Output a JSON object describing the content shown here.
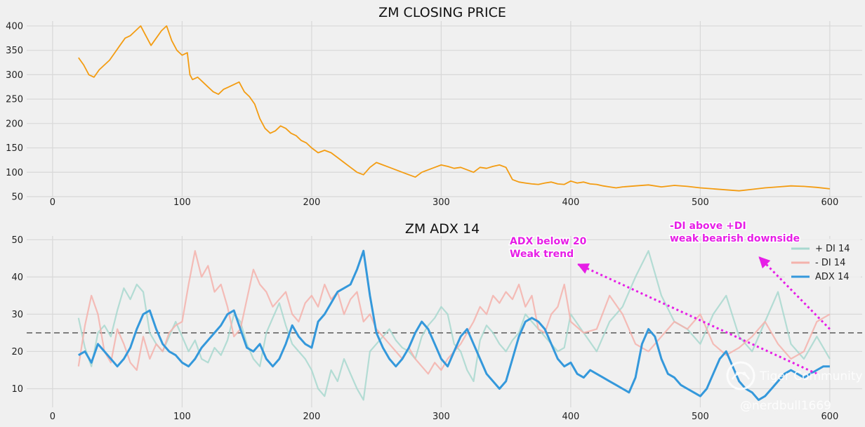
{
  "chart_data": [
    {
      "type": "line",
      "title": "ZM CLOSING PRICE",
      "xlim": [
        -20,
        625
      ],
      "ylim": [
        50,
        410
      ],
      "xticks": [
        0,
        100,
        200,
        300,
        400,
        500,
        600
      ],
      "yticks": [
        50,
        100,
        150,
        200,
        250,
        300,
        350,
        400
      ],
      "grid": true,
      "series": [
        {
          "color": "#f39c12",
          "x": [
            20,
            24,
            28,
            32,
            36,
            40,
            44,
            48,
            52,
            56,
            60,
            64,
            68,
            72,
            76,
            80,
            84,
            88,
            92,
            96,
            100,
            104,
            106,
            108,
            112,
            116,
            120,
            124,
            128,
            132,
            136,
            140,
            144,
            148,
            152,
            156,
            160,
            164,
            168,
            172,
            176,
            180,
            184,
            188,
            192,
            196,
            200,
            205,
            210,
            215,
            220,
            225,
            230,
            235,
            240,
            245,
            250,
            255,
            260,
            265,
            270,
            275,
            280,
            285,
            290,
            295,
            300,
            305,
            310,
            315,
            320,
            325,
            330,
            335,
            340,
            345,
            350,
            355,
            360,
            365,
            370,
            375,
            380,
            385,
            390,
            395,
            400,
            405,
            410,
            415,
            420,
            425,
            430,
            435,
            440,
            450,
            460,
            470,
            480,
            490,
            500,
            510,
            520,
            530,
            540,
            550,
            560,
            570,
            580,
            590,
            600
          ],
          "y": [
            335,
            320,
            300,
            295,
            310,
            320,
            330,
            345,
            360,
            375,
            380,
            390,
            400,
            380,
            360,
            375,
            390,
            400,
            370,
            350,
            340,
            345,
            300,
            290,
            295,
            285,
            275,
            265,
            260,
            270,
            275,
            280,
            285,
            265,
            255,
            240,
            210,
            190,
            180,
            185,
            195,
            190,
            180,
            175,
            165,
            160,
            150,
            140,
            145,
            140,
            130,
            120,
            110,
            100,
            95,
            110,
            120,
            115,
            110,
            105,
            100,
            95,
            90,
            100,
            105,
            110,
            115,
            112,
            108,
            110,
            105,
            100,
            110,
            108,
            112,
            115,
            110,
            85,
            80,
            78,
            76,
            75,
            78,
            80,
            76,
            75,
            82,
            78,
            80,
            76,
            75,
            72,
            70,
            68,
            70,
            72,
            74,
            70,
            73,
            71,
            68,
            66,
            64,
            62,
            65,
            68,
            70,
            72,
            71,
            69,
            66
          ]
        }
      ]
    },
    {
      "type": "line",
      "title": "ZM ADX 14",
      "xlim": [
        -20,
        625
      ],
      "ylim": [
        5,
        51
      ],
      "xticks": [
        0,
        100,
        200,
        300,
        400,
        500,
        600
      ],
      "yticks": [
        10,
        20,
        30,
        40,
        50
      ],
      "grid": true,
      "legend": "top-right",
      "reference_line": {
        "y": 25,
        "style": "dashed",
        "color": "#777777"
      },
      "series": [
        {
          "name": "+ DI 14",
          "color": "#a8d8cf",
          "x": [
            20,
            25,
            30,
            35,
            40,
            45,
            50,
            55,
            60,
            65,
            70,
            75,
            80,
            85,
            90,
            95,
            100,
            105,
            110,
            115,
            120,
            125,
            130,
            135,
            140,
            145,
            150,
            155,
            160,
            165,
            170,
            175,
            180,
            185,
            190,
            195,
            200,
            205,
            210,
            215,
            220,
            225,
            230,
            235,
            240,
            245,
            250,
            255,
            260,
            265,
            270,
            275,
            280,
            285,
            290,
            295,
            300,
            305,
            310,
            315,
            320,
            325,
            330,
            335,
            340,
            345,
            350,
            355,
            360,
            365,
            370,
            375,
            380,
            385,
            390,
            395,
            400,
            410,
            420,
            430,
            440,
            450,
            460,
            470,
            480,
            490,
            500,
            510,
            520,
            530,
            540,
            550,
            560,
            570,
            580,
            590,
            600
          ],
          "y": [
            29,
            21,
            16,
            25,
            27,
            24,
            31,
            37,
            34,
            38,
            36,
            25,
            22,
            20,
            24,
            28,
            24,
            20,
            23,
            18,
            17,
            21,
            19,
            23,
            30,
            28,
            22,
            18,
            16,
            25,
            29,
            33,
            27,
            22,
            20,
            18,
            15,
            10,
            8,
            15,
            12,
            18,
            14,
            10,
            7,
            20,
            22,
            24,
            26,
            23,
            21,
            20,
            18,
            24,
            27,
            29,
            32,
            30,
            22,
            20,
            15,
            12,
            23,
            27,
            25,
            22,
            20,
            23,
            25,
            30,
            28,
            26,
            24,
            22,
            20,
            21,
            30,
            25,
            20,
            28,
            32,
            40,
            47,
            35,
            28,
            26,
            22,
            30,
            35,
            24,
            20,
            28,
            36,
            22,
            18,
            24,
            18
          ]
        },
        {
          "name": "- DI 14",
          "color": "#f4b2ab",
          "x": [
            20,
            25,
            30,
            35,
            40,
            45,
            50,
            55,
            60,
            65,
            70,
            75,
            80,
            85,
            90,
            95,
            100,
            105,
            110,
            115,
            120,
            125,
            130,
            135,
            140,
            145,
            150,
            155,
            160,
            165,
            170,
            175,
            180,
            185,
            190,
            195,
            200,
            205,
            210,
            215,
            220,
            225,
            230,
            235,
            240,
            245,
            250,
            255,
            260,
            265,
            270,
            275,
            280,
            285,
            290,
            295,
            300,
            305,
            310,
            315,
            320,
            325,
            330,
            335,
            340,
            345,
            350,
            355,
            360,
            365,
            370,
            375,
            380,
            385,
            390,
            395,
            400,
            410,
            420,
            430,
            440,
            450,
            460,
            470,
            480,
            490,
            500,
            510,
            520,
            530,
            540,
            550,
            560,
            570,
            580,
            590,
            600
          ],
          "y": [
            16,
            27,
            35,
            30,
            20,
            17,
            26,
            22,
            17,
            15,
            24,
            18,
            22,
            20,
            25,
            27,
            28,
            38,
            47,
            40,
            43,
            36,
            38,
            32,
            24,
            26,
            34,
            42,
            38,
            36,
            32,
            34,
            36,
            30,
            28,
            33,
            35,
            32,
            38,
            34,
            36,
            30,
            34,
            36,
            28,
            30,
            26,
            24,
            22,
            20,
            18,
            21,
            18,
            16,
            14,
            17,
            15,
            18,
            20,
            22,
            25,
            28,
            32,
            30,
            35,
            33,
            36,
            34,
            38,
            32,
            35,
            26,
            25,
            30,
            32,
            38,
            28,
            25,
            26,
            35,
            30,
            22,
            20,
            24,
            28,
            26,
            30,
            22,
            19,
            21,
            24,
            28,
            22,
            18,
            20,
            28,
            30
          ]
        },
        {
          "name": "ADX 14",
          "color": "#3498db",
          "x": [
            20,
            25,
            30,
            35,
            40,
            45,
            50,
            55,
            60,
            65,
            70,
            75,
            80,
            85,
            90,
            95,
            100,
            105,
            110,
            115,
            120,
            125,
            130,
            135,
            140,
            145,
            150,
            155,
            160,
            165,
            170,
            175,
            180,
            185,
            190,
            195,
            200,
            205,
            210,
            215,
            220,
            225,
            230,
            235,
            240,
            245,
            250,
            255,
            260,
            265,
            270,
            275,
            280,
            285,
            290,
            295,
            300,
            305,
            310,
            315,
            320,
            325,
            330,
            335,
            340,
            345,
            350,
            355,
            360,
            365,
            370,
            375,
            380,
            385,
            390,
            395,
            400,
            405,
            410,
            415,
            420,
            425,
            430,
            435,
            440,
            445,
            450,
            455,
            460,
            465,
            470,
            475,
            480,
            485,
            490,
            495,
            500,
            505,
            510,
            515,
            520,
            525,
            530,
            535,
            540,
            545,
            550,
            555,
            560,
            565,
            570,
            575,
            580,
            585,
            590,
            595,
            600
          ],
          "y": [
            19,
            20,
            17,
            22,
            20,
            18,
            16,
            18,
            21,
            26,
            30,
            31,
            26,
            22,
            20,
            19,
            17,
            16,
            18,
            21,
            23,
            25,
            27,
            30,
            31,
            26,
            21,
            20,
            22,
            18,
            16,
            18,
            22,
            27,
            24,
            22,
            21,
            28,
            30,
            33,
            36,
            37,
            38,
            42,
            47,
            35,
            25,
            21,
            18,
            16,
            18,
            21,
            25,
            28,
            26,
            22,
            18,
            16,
            20,
            24,
            26,
            22,
            18,
            14,
            12,
            10,
            12,
            18,
            24,
            28,
            29,
            28,
            26,
            22,
            18,
            16,
            17,
            14,
            13,
            15,
            14,
            13,
            12,
            11,
            10,
            9,
            13,
            22,
            26,
            24,
            18,
            14,
            13,
            11,
            10,
            9,
            8,
            10,
            14,
            18,
            20,
            16,
            12,
            10,
            9,
            7,
            8,
            10,
            12,
            14,
            15,
            14,
            13,
            14,
            15,
            16,
            16
          ]
        }
      ],
      "annotations": [
        {
          "lines": [
            "ADX below 20",
            "Weak trend"
          ],
          "arrow_from": [
            590,
            14
          ],
          "arrow_to": [
            405,
            43.5
          ],
          "color": "#e61ee6"
        },
        {
          "lines": [
            "-DI above +DI",
            "weak bearish downside"
          ],
          "arrow_from": [
            600,
            26
          ],
          "arrow_to": [
            545,
            45.5
          ],
          "color": "#e61ee6"
        }
      ]
    }
  ],
  "watermark": {
    "logo_text": "Tiger Community",
    "handle": "@nerdbull1669"
  }
}
